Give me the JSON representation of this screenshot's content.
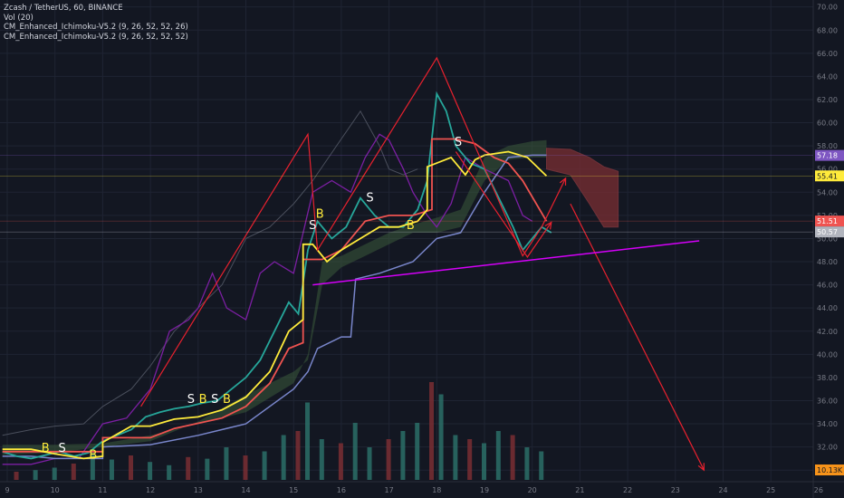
{
  "header": {
    "symbol_line": "Zcash / TetherUS, 60, BINANCE",
    "vol_line": "Vol (20)",
    "indicator_1": "CM_Enhanced_Ichimoku-V5.2 (9, 26, 52, 52, 26)",
    "indicator_2": "CM_Enhanced_Ichimoku-V5.2 (9, 26, 52, 52, 52)"
  },
  "colors": {
    "background": "#131722",
    "grid": "#1f2433",
    "price_candles": "#2b6f67",
    "tenkan": "#ffeb3b",
    "kijun": "#ef5350",
    "cloud_green": "#3a5a3a",
    "cloud_red": "#7a2e33",
    "purple_line": "#7b1fa2",
    "annotation_red": "#e8212e",
    "trendline_magenta": "#d500f9"
  },
  "chart_data": {
    "type": "line",
    "x_ticks": [
      "9",
      "10",
      "11",
      "12",
      "13",
      "14",
      "15",
      "16",
      "17",
      "18",
      "19",
      "20",
      "21",
      "22",
      "23",
      "24",
      "25",
      "26"
    ],
    "y_ticks": [
      "70.00",
      "68.00",
      "66.00",
      "64.00",
      "62.00",
      "60.00",
      "58.00",
      "56.00",
      "54.00",
      "52.00",
      "50.00",
      "48.00",
      "46.00",
      "44.00",
      "42.00",
      "40.00",
      "38.00",
      "36.00",
      "34.00",
      "32.00",
      "30.00"
    ],
    "ylim": [
      29,
      70.6
    ],
    "price_labels": [
      {
        "text": "57.18",
        "value": 57.18,
        "color": "#7e57c2"
      },
      {
        "text": "55.41",
        "value": 55.41,
        "color": "#ffeb3b"
      },
      {
        "text": "51.51",
        "value": 51.51,
        "color": "#ef5350"
      },
      {
        "text": "50.57",
        "value": 50.57,
        "color": "#b2b5be"
      }
    ],
    "volume_labels": [
      {
        "text": "10.13K",
        "color": "#f7931a"
      }
    ],
    "markers": [
      {
        "text": "B",
        "x": 9.8,
        "y": 31.6,
        "color": "#ffeb3b"
      },
      {
        "text": "S",
        "x": 10.15,
        "y": 31.6,
        "color": "#ffffff"
      },
      {
        "text": "B",
        "x": 10.8,
        "y": 31.0,
        "color": "#ffeb3b"
      },
      {
        "text": "S",
        "x": 12.85,
        "y": 35.8,
        "color": "#ffffff"
      },
      {
        "text": "B",
        "x": 13.1,
        "y": 35.8,
        "color": "#ffeb3b"
      },
      {
        "text": "S",
        "x": 13.35,
        "y": 35.8,
        "color": "#ffffff"
      },
      {
        "text": "B",
        "x": 13.6,
        "y": 35.8,
        "color": "#ffeb3b"
      },
      {
        "text": "S",
        "x": 15.4,
        "y": 50.8,
        "color": "#ffffff"
      },
      {
        "text": "B",
        "x": 15.55,
        "y": 51.8,
        "color": "#ffeb3b"
      },
      {
        "text": "S",
        "x": 16.6,
        "y": 53.2,
        "color": "#ffffff"
      },
      {
        "text": "B",
        "x": 17.45,
        "y": 50.8,
        "color": "#ffeb3b"
      },
      {
        "text": "S",
        "x": 18.45,
        "y": 58.0,
        "color": "#ffffff"
      }
    ],
    "price_series": [
      [
        8.9,
        31.6
      ],
      [
        9.2,
        31.2
      ],
      [
        9.5,
        31.0
      ],
      [
        9.8,
        31.3
      ],
      [
        10.1,
        31.6
      ],
      [
        10.4,
        31.2
      ],
      [
        10.7,
        31.5
      ],
      [
        11.0,
        32.5
      ],
      [
        11.3,
        33.0
      ],
      [
        11.6,
        33.5
      ],
      [
        11.9,
        34.6
      ],
      [
        12.2,
        35.0
      ],
      [
        12.5,
        35.3
      ],
      [
        12.8,
        35.5
      ],
      [
        13.1,
        35.8
      ],
      [
        13.4,
        36.0
      ],
      [
        13.7,
        37.0
      ],
      [
        14.0,
        38.0
      ],
      [
        14.3,
        39.5
      ],
      [
        14.6,
        42.0
      ],
      [
        14.9,
        44.5
      ],
      [
        15.1,
        43.5
      ],
      [
        15.3,
        49.0
      ],
      [
        15.5,
        51.5
      ],
      [
        15.8,
        50.0
      ],
      [
        16.1,
        51.0
      ],
      [
        16.4,
        53.5
      ],
      [
        16.7,
        52.0
      ],
      [
        17.0,
        51.0
      ],
      [
        17.3,
        51.0
      ],
      [
        17.6,
        52.5
      ],
      [
        17.8,
        55.0
      ],
      [
        18.0,
        62.5
      ],
      [
        18.2,
        61.0
      ],
      [
        18.4,
        58.0
      ],
      [
        18.7,
        56.5
      ],
      [
        19.0,
        56.0
      ],
      [
        19.3,
        53.5
      ],
      [
        19.6,
        51.0
      ],
      [
        19.8,
        49.0
      ],
      [
        20.0,
        50.0
      ],
      [
        20.2,
        51.0
      ],
      [
        20.4,
        50.5
      ]
    ],
    "tenkan": [
      [
        8.9,
        31.8
      ],
      [
        9.5,
        31.8
      ],
      [
        10.0,
        31.4
      ],
      [
        10.6,
        31.0
      ],
      [
        11.0,
        31.2
      ],
      [
        11.0,
        32.4
      ],
      [
        11.6,
        33.8
      ],
      [
        12.0,
        33.8
      ],
      [
        12.5,
        34.4
      ],
      [
        13.0,
        34.6
      ],
      [
        13.5,
        35.2
      ],
      [
        14.0,
        36.3
      ],
      [
        14.5,
        38.5
      ],
      [
        14.9,
        42.0
      ],
      [
        15.2,
        43.0
      ],
      [
        15.2,
        49.5
      ],
      [
        15.4,
        49.5
      ],
      [
        15.7,
        48.0
      ],
      [
        16.0,
        49.0
      ],
      [
        16.4,
        50.0
      ],
      [
        16.8,
        51.0
      ],
      [
        17.2,
        51.0
      ],
      [
        17.6,
        51.5
      ],
      [
        17.8,
        52.5
      ],
      [
        17.8,
        56.2
      ],
      [
        18.3,
        57.0
      ],
      [
        18.6,
        55.5
      ],
      [
        18.8,
        56.8
      ],
      [
        19.0,
        57.2
      ],
      [
        19.5,
        57.5
      ],
      [
        19.9,
        57.0
      ],
      [
        20.3,
        55.4
      ]
    ],
    "kijun": [
      [
        8.9,
        31.6
      ],
      [
        10.0,
        31.6
      ],
      [
        11.0,
        31.6
      ],
      [
        11.0,
        32.8
      ],
      [
        12.0,
        32.8
      ],
      [
        12.5,
        33.6
      ],
      [
        13.5,
        34.5
      ],
      [
        14.0,
        35.5
      ],
      [
        14.5,
        37.5
      ],
      [
        14.9,
        40.5
      ],
      [
        15.2,
        41.0
      ],
      [
        15.2,
        48.2
      ],
      [
        15.6,
        48.2
      ],
      [
        16.0,
        49.0
      ],
      [
        16.5,
        51.5
      ],
      [
        17.0,
        52.0
      ],
      [
        17.5,
        52.0
      ],
      [
        17.9,
        52.5
      ],
      [
        17.9,
        58.6
      ],
      [
        18.4,
        58.6
      ],
      [
        18.8,
        58.2
      ],
      [
        19.2,
        57.0
      ],
      [
        19.5,
        56.5
      ],
      [
        19.8,
        55.0
      ],
      [
        20.3,
        51.5
      ]
    ],
    "purple_line": [
      [
        8.9,
        30.5
      ],
      [
        9.5,
        30.5
      ],
      [
        10.0,
        31.0
      ],
      [
        10.5,
        31.0
      ],
      [
        11.0,
        34.0
      ],
      [
        11.5,
        34.5
      ],
      [
        12.0,
        37.0
      ],
      [
        12.4,
        42.0
      ],
      [
        12.8,
        43.0
      ],
      [
        13.0,
        44.0
      ],
      [
        13.3,
        47.0
      ],
      [
        13.6,
        44.0
      ],
      [
        14.0,
        43.0
      ],
      [
        14.3,
        47.0
      ],
      [
        14.6,
        48.0
      ],
      [
        15.0,
        47.0
      ],
      [
        15.4,
        54.0
      ],
      [
        15.8,
        55.0
      ],
      [
        16.2,
        54.0
      ],
      [
        16.5,
        57.0
      ],
      [
        16.8,
        59.0
      ],
      [
        17.0,
        58.5
      ],
      [
        17.3,
        56.0
      ],
      [
        17.5,
        54.0
      ],
      [
        17.8,
        52.0
      ],
      [
        18.0,
        51.0
      ],
      [
        18.3,
        53.0
      ],
      [
        18.6,
        57.0
      ],
      [
        19.0,
        56.0
      ],
      [
        19.5,
        55.0
      ],
      [
        19.8,
        52.0
      ],
      [
        20.0,
        51.5
      ]
    ],
    "gray_line": [
      [
        8.9,
        33.0
      ],
      [
        9.5,
        33.5
      ],
      [
        10.0,
        33.8
      ],
      [
        10.6,
        34.0
      ],
      [
        11.0,
        35.5
      ],
      [
        11.6,
        37.0
      ],
      [
        12.0,
        39.0
      ],
      [
        12.5,
        42.0
      ],
      [
        13.0,
        44.0
      ],
      [
        13.5,
        46.0
      ],
      [
        14.0,
        50.0
      ],
      [
        14.5,
        51.0
      ],
      [
        15.0,
        53.0
      ],
      [
        15.4,
        55.0
      ],
      [
        15.9,
        58.0
      ],
      [
        16.4,
        61.0
      ],
      [
        16.8,
        58.0
      ],
      [
        17.0,
        56.0
      ],
      [
        17.3,
        55.5
      ],
      [
        17.6,
        56.0
      ]
    ],
    "cloud_green": {
      "top": [
        [
          8.9,
          32.2
        ],
        [
          10.0,
          32.2
        ],
        [
          11.0,
          32.3
        ],
        [
          12.0,
          33.0
        ],
        [
          13.0,
          34.0
        ],
        [
          14.0,
          35.0
        ],
        [
          15.0,
          37.5
        ],
        [
          15.3,
          40.0
        ],
        [
          15.6,
          48.0
        ],
        [
          16.0,
          48.5
        ],
        [
          16.5,
          49.5
        ],
        [
          17.0,
          50.5
        ],
        [
          17.5,
          51.2
        ],
        [
          18.0,
          51.8
        ],
        [
          18.5,
          52.5
        ],
        [
          19.0,
          57.0
        ],
        [
          19.5,
          58.0
        ],
        [
          20.0,
          58.4
        ],
        [
          20.3,
          58.5
        ]
      ],
      "bottom": [
        [
          20.3,
          57.0
        ],
        [
          20.0,
          57.0
        ],
        [
          19.5,
          56.8
        ],
        [
          19.0,
          55.0
        ],
        [
          18.5,
          51.0
        ],
        [
          18.0,
          50.5
        ],
        [
          17.5,
          50.5
        ],
        [
          17.0,
          49.5
        ],
        [
          16.5,
          48.5
        ],
        [
          16.0,
          47.5
        ],
        [
          15.6,
          46.0
        ],
        [
          15.3,
          39.5
        ],
        [
          15.0,
          38.5
        ],
        [
          14.0,
          36.5
        ],
        [
          13.0,
          34.2
        ],
        [
          12.0,
          32.5
        ],
        [
          11.0,
          32.0
        ],
        [
          10.0,
          31.5
        ],
        [
          8.9,
          31.3
        ]
      ]
    },
    "cloud_red": {
      "top": [
        [
          20.3,
          57.8
        ],
        [
          20.8,
          57.7
        ],
        [
          21.2,
          57.0
        ],
        [
          21.5,
          56.2
        ],
        [
          21.8,
          55.8
        ]
      ],
      "bottom": [
        [
          21.8,
          51.0
        ],
        [
          21.5,
          51.0
        ],
        [
          21.2,
          53.0
        ],
        [
          20.8,
          55.5
        ],
        [
          20.3,
          56.0
        ]
      ]
    },
    "ichimoku_lower_blue": [
      [
        8.9,
        31.2
      ],
      [
        9.5,
        31.2
      ],
      [
        10.0,
        31.0
      ],
      [
        11.0,
        31.0
      ],
      [
        11.0,
        32.0
      ],
      [
        12.0,
        32.2
      ],
      [
        13.0,
        33.0
      ],
      [
        14.0,
        34.0
      ],
      [
        15.0,
        37.0
      ],
      [
        15.3,
        38.5
      ],
      [
        15.5,
        40.5
      ],
      [
        16.0,
        41.5
      ],
      [
        16.2,
        41.5
      ],
      [
        16.3,
        46.5
      ],
      [
        16.8,
        47.0
      ],
      [
        17.5,
        48.0
      ],
      [
        18.0,
        50.0
      ],
      [
        18.5,
        50.5
      ],
      [
        19.0,
        54.0
      ],
      [
        19.5,
        57.0
      ],
      [
        20.0,
        57.2
      ],
      [
        20.3,
        57.2
      ]
    ],
    "annotation_lines": [
      [
        [
          11.8,
          35.5
        ],
        [
          15.3,
          59.0
        ],
        [
          15.5,
          49.0
        ],
        [
          18.0,
          65.6
        ],
        [
          19.8,
          48.5
        ],
        [
          20.2,
          51.0
        ],
        [
          20.7,
          55.2
        ]
      ],
      [
        [
          20.8,
          53.0
        ],
        [
          23.6,
          30.0
        ]
      ],
      [
        [
          18.4,
          57.5
        ],
        [
          19.9,
          48.4
        ],
        [
          20.4,
          51.4
        ]
      ]
    ],
    "trendline": [
      [
        15.4,
        46.0
      ],
      [
        23.5,
        49.8
      ]
    ],
    "volume_bars": [
      [
        9.2,
        0.1
      ],
      [
        9.6,
        0.12
      ],
      [
        10.0,
        0.15
      ],
      [
        10.4,
        0.2
      ],
      [
        10.8,
        0.35
      ],
      [
        11.2,
        0.25
      ],
      [
        11.6,
        0.3
      ],
      [
        12.0,
        0.22
      ],
      [
        12.4,
        0.18
      ],
      [
        12.8,
        0.28
      ],
      [
        13.2,
        0.26
      ],
      [
        13.6,
        0.4
      ],
      [
        14.0,
        0.3
      ],
      [
        14.4,
        0.35
      ],
      [
        14.8,
        0.55
      ],
      [
        15.1,
        0.6
      ],
      [
        15.3,
        0.95
      ],
      [
        15.6,
        0.5
      ],
      [
        16.0,
        0.45
      ],
      [
        16.3,
        0.7
      ],
      [
        16.6,
        0.4
      ],
      [
        17.0,
        0.5
      ],
      [
        17.3,
        0.6
      ],
      [
        17.6,
        0.7
      ],
      [
        17.9,
        1.2
      ],
      [
        18.1,
        1.05
      ],
      [
        18.4,
        0.55
      ],
      [
        18.7,
        0.5
      ],
      [
        19.0,
        0.45
      ],
      [
        19.3,
        0.6
      ],
      [
        19.6,
        0.55
      ],
      [
        19.9,
        0.4
      ],
      [
        20.2,
        0.35
      ]
    ]
  }
}
